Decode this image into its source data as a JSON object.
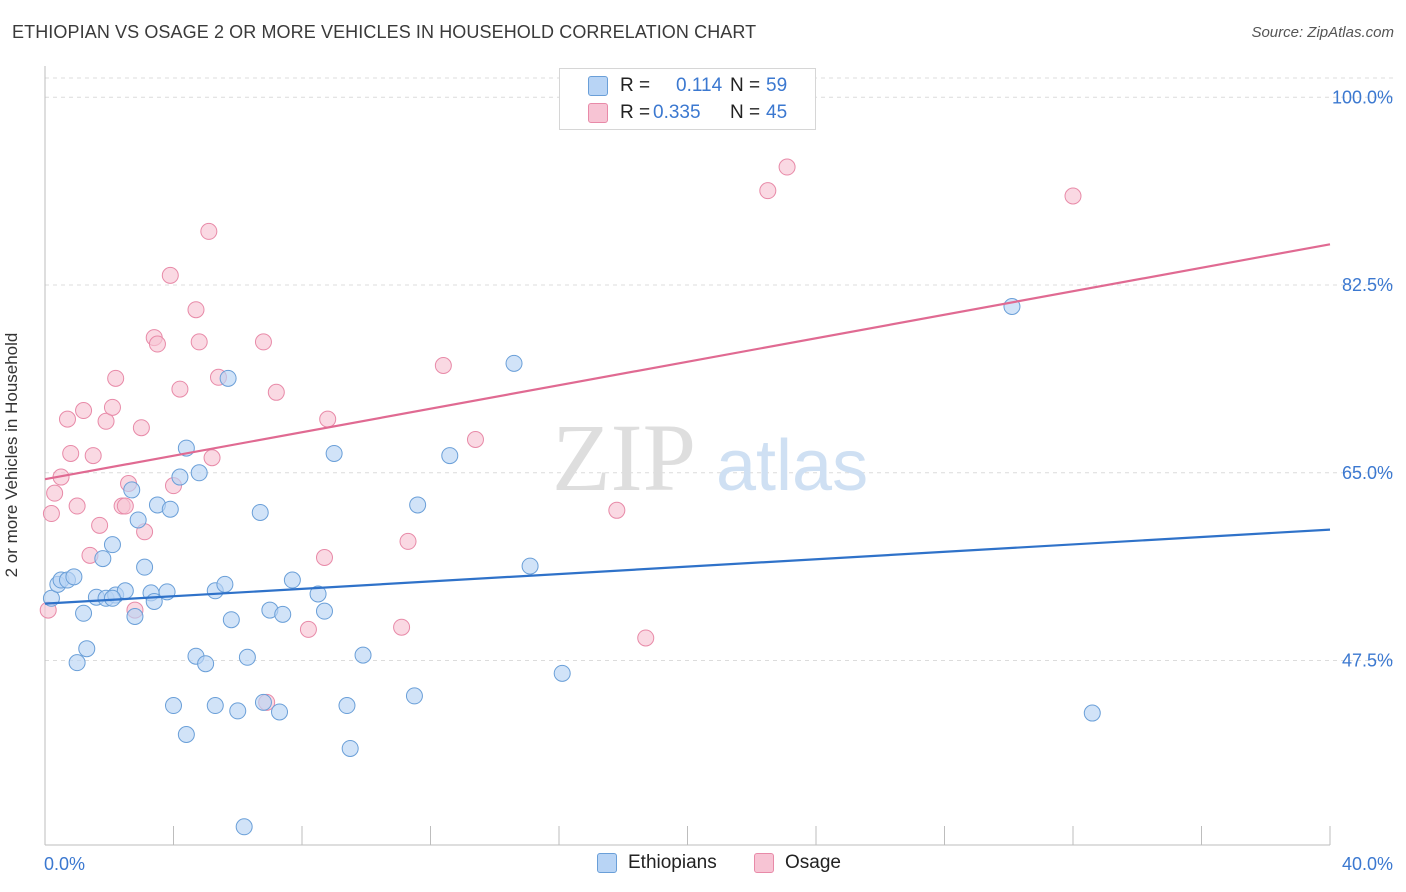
{
  "title": "ETHIOPIAN VS OSAGE 2 OR MORE VEHICLES IN HOUSEHOLD CORRELATION CHART",
  "source": "Source: ZipAtlas.com",
  "watermark": {
    "zip": "ZIP",
    "atlas": "atlas"
  },
  "legend": {
    "ethiopians": {
      "r_label": "R =",
      "r_value": "0.114",
      "n_label": "N =",
      "n_value": "59"
    },
    "osage": {
      "r_label": "R =",
      "r_value": "0.335",
      "n_label": "N =",
      "n_value": "45"
    }
  },
  "colors": {
    "ethiopians_fill": "#b8d4f5",
    "ethiopians_stroke": "#6a9fd8",
    "ethiopians_line": "#2f72c9",
    "osage_fill": "#f7c4d4",
    "osage_stroke": "#e88aa8",
    "osage_line": "#e06a92",
    "axis_text": "#3b78d0",
    "grid": "#dcdcdc"
  },
  "chart_data": {
    "type": "scatter",
    "title": "ETHIOPIAN VS OSAGE 2 OR MORE VEHICLES IN HOUSEHOLD CORRELATION CHART",
    "xlabel": "",
    "ylabel": "2 or more Vehicles in Household",
    "xlim": [
      0,
      40
    ],
    "ylim": [
      30.3,
      101.8
    ],
    "x_tick_labels": [
      "0.0%",
      "40.0%"
    ],
    "y_ticks": [
      47.5,
      65.0,
      82.5,
      100.0
    ],
    "y_tick_labels": [
      "47.5%",
      "65.0%",
      "82.5%",
      "100.0%"
    ],
    "grid": true,
    "legend_position": "top-center",
    "series": [
      {
        "name": "Ethiopians",
        "trend": {
          "x": [
            0,
            40
          ],
          "y": [
            52.8,
            59.7
          ]
        },
        "points": [
          [
            0.2,
            53.3
          ],
          [
            0.4,
            54.6
          ],
          [
            0.5,
            55.0
          ],
          [
            0.7,
            55.0
          ],
          [
            0.9,
            55.3
          ],
          [
            1.0,
            47.3
          ],
          [
            1.3,
            48.6
          ],
          [
            1.2,
            51.9
          ],
          [
            1.6,
            53.4
          ],
          [
            1.8,
            57.0
          ],
          [
            1.9,
            53.3
          ],
          [
            2.2,
            53.6
          ],
          [
            2.1,
            58.3
          ],
          [
            2.5,
            54.0
          ],
          [
            2.7,
            63.4
          ],
          [
            2.8,
            51.6
          ],
          [
            2.9,
            60.6
          ],
          [
            3.1,
            56.2
          ],
          [
            3.3,
            53.8
          ],
          [
            3.4,
            53.0
          ],
          [
            3.5,
            62.0
          ],
          [
            3.8,
            53.9
          ],
          [
            3.9,
            61.6
          ],
          [
            4.2,
            64.6
          ],
          [
            4.0,
            43.3
          ],
          [
            4.4,
            40.6
          ],
          [
            4.4,
            67.3
          ],
          [
            4.8,
            65.0
          ],
          [
            4.7,
            47.9
          ],
          [
            5.0,
            47.2
          ],
          [
            5.3,
            54.0
          ],
          [
            5.3,
            43.3
          ],
          [
            5.6,
            54.6
          ],
          [
            5.8,
            51.3
          ],
          [
            6.0,
            42.8
          ],
          [
            5.7,
            73.8
          ],
          [
            6.3,
            47.8
          ],
          [
            6.7,
            61.3
          ],
          [
            6.8,
            43.6
          ],
          [
            7.0,
            52.2
          ],
          [
            7.3,
            42.7
          ],
          [
            7.4,
            51.8
          ],
          [
            7.7,
            55.0
          ],
          [
            8.5,
            53.7
          ],
          [
            8.7,
            52.1
          ],
          [
            9.0,
            66.8
          ],
          [
            9.4,
            43.3
          ],
          [
            9.5,
            39.3
          ],
          [
            9.9,
            48.0
          ],
          [
            11.5,
            44.2
          ],
          [
            11.6,
            62.0
          ],
          [
            12.6,
            66.6
          ],
          [
            14.6,
            75.2
          ],
          [
            15.1,
            56.3
          ],
          [
            16.1,
            46.3
          ],
          [
            30.1,
            80.5
          ],
          [
            32.6,
            42.6
          ],
          [
            6.2,
            32.0
          ],
          [
            2.1,
            53.3
          ]
        ]
      },
      {
        "name": "Osage",
        "trend": {
          "x": [
            0,
            40
          ],
          "y": [
            64.4,
            86.3
          ]
        },
        "points": [
          [
            0.1,
            52.2
          ],
          [
            0.3,
            63.1
          ],
          [
            0.5,
            64.6
          ],
          [
            0.7,
            70.0
          ],
          [
            0.8,
            66.8
          ],
          [
            1.0,
            61.9
          ],
          [
            1.2,
            70.8
          ],
          [
            1.4,
            57.3
          ],
          [
            1.5,
            66.6
          ],
          [
            1.7,
            60.1
          ],
          [
            1.9,
            69.8
          ],
          [
            2.1,
            71.1
          ],
          [
            2.2,
            73.8
          ],
          [
            2.4,
            61.9
          ],
          [
            2.5,
            61.9
          ],
          [
            2.6,
            64.0
          ],
          [
            2.8,
            52.2
          ],
          [
            3.0,
            69.2
          ],
          [
            3.1,
            59.5
          ],
          [
            3.4,
            77.6
          ],
          [
            3.5,
            77.0
          ],
          [
            3.9,
            83.4
          ],
          [
            4.2,
            72.8
          ],
          [
            4.0,
            63.8
          ],
          [
            4.7,
            80.2
          ],
          [
            4.8,
            77.2
          ],
          [
            5.1,
            87.5
          ],
          [
            5.2,
            66.4
          ],
          [
            5.4,
            73.9
          ],
          [
            6.8,
            77.2
          ],
          [
            6.9,
            43.6
          ],
          [
            7.2,
            72.5
          ],
          [
            8.2,
            50.4
          ],
          [
            8.7,
            57.1
          ],
          [
            8.8,
            70.0
          ],
          [
            11.1,
            50.6
          ],
          [
            11.3,
            58.6
          ],
          [
            12.4,
            75.0
          ],
          [
            13.4,
            68.1
          ],
          [
            17.8,
            61.5
          ],
          [
            18.7,
            49.6
          ],
          [
            22.5,
            91.3
          ],
          [
            23.1,
            93.5
          ],
          [
            32.0,
            90.8
          ],
          [
            0.2,
            61.2
          ]
        ]
      }
    ]
  },
  "bottom_legend": {
    "ethiopians": "Ethiopians",
    "osage": "Osage"
  }
}
